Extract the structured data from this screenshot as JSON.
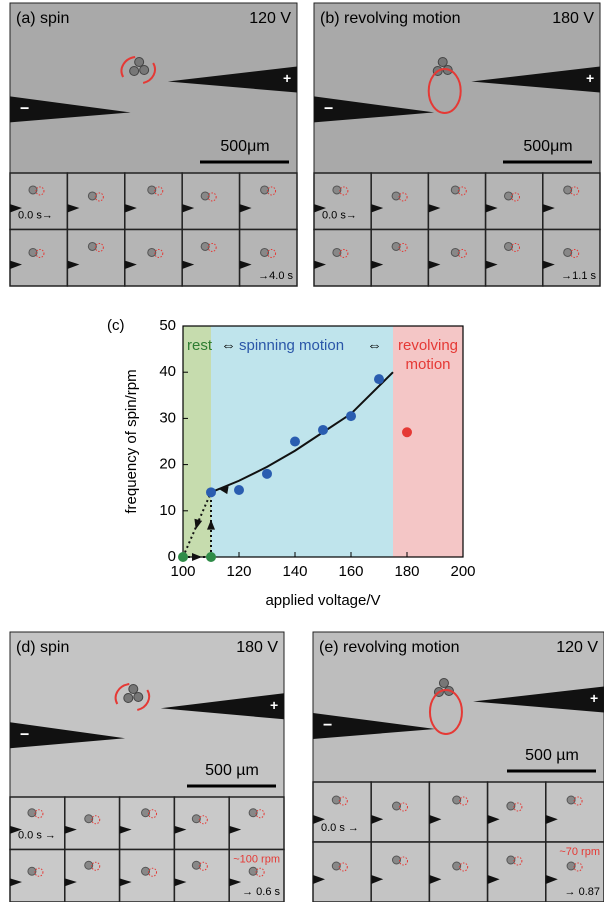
{
  "electrodes": {
    "positive": "+",
    "negative": "−"
  },
  "panels": [
    {
      "label": "(a) spin",
      "voltage": "120 V",
      "scale_bar": "500μm",
      "start_time": "0.0 s→",
      "end_time": "→4.0 s"
    },
    {
      "label": "(b) revolving motion",
      "voltage": "180 V",
      "scale_bar": "500μm",
      "start_time": "0.0 s→",
      "end_time": "→1.1 s"
    },
    {
      "label": "(d) spin",
      "voltage": "180 V",
      "scale_bar": "500 µm",
      "start_time": "0.0 s →",
      "rate": "~100 rpm",
      "end_time": "→ 0.6 s"
    },
    {
      "label": "(e) revolving motion",
      "voltage": "120 V",
      "scale_bar": "500 µm",
      "start_time": "0.0 s →",
      "rate": "~70 rpm",
      "end_time": "→ 0.87"
    }
  ],
  "chart_data": {
    "type": "scatter",
    "panel_label": "(c)",
    "x_label": "applied voltage/V",
    "y_label": "frequency of spin/rpm",
    "xlim": [
      100,
      200
    ],
    "ylim": [
      0,
      50
    ],
    "xticks": [
      100,
      120,
      140,
      160,
      180,
      200
    ],
    "yticks": [
      0,
      10,
      20,
      30,
      40,
      50
    ],
    "regions": [
      {
        "label": "rest",
        "xlim": [
          100,
          110
        ],
        "color": "#c6dcae",
        "text_color": "#2e7d32"
      },
      {
        "label": "spinning motion",
        "xlim": [
          110,
          175
        ],
        "color": "#bfe4ec",
        "text_color": "#2a56a8"
      },
      {
        "label": "revolving motion",
        "xlim": [
          175,
          200
        ],
        "color": "#f4c6c6",
        "text_color": "#e53935"
      }
    ],
    "separators": [
      "⇔",
      "⇔"
    ],
    "series": [
      {
        "color": "#2e8b47",
        "x": [
          100,
          110
        ],
        "values": [
          0,
          0
        ]
      },
      {
        "color": "#2a5db0",
        "x": [
          110,
          120,
          130,
          140,
          150,
          160,
          170
        ],
        "values": [
          14,
          14.5,
          18,
          25,
          27.5,
          30.5,
          38.5
        ]
      },
      {
        "color": "#e53935",
        "x": [
          180
        ],
        "values": [
          27
        ]
      }
    ],
    "fit": {
      "x": [
        110,
        120,
        130,
        140,
        150,
        160,
        175
      ],
      "values": [
        14,
        16.5,
        19.5,
        23,
        27,
        31,
        40
      ],
      "color": "#111111"
    }
  }
}
